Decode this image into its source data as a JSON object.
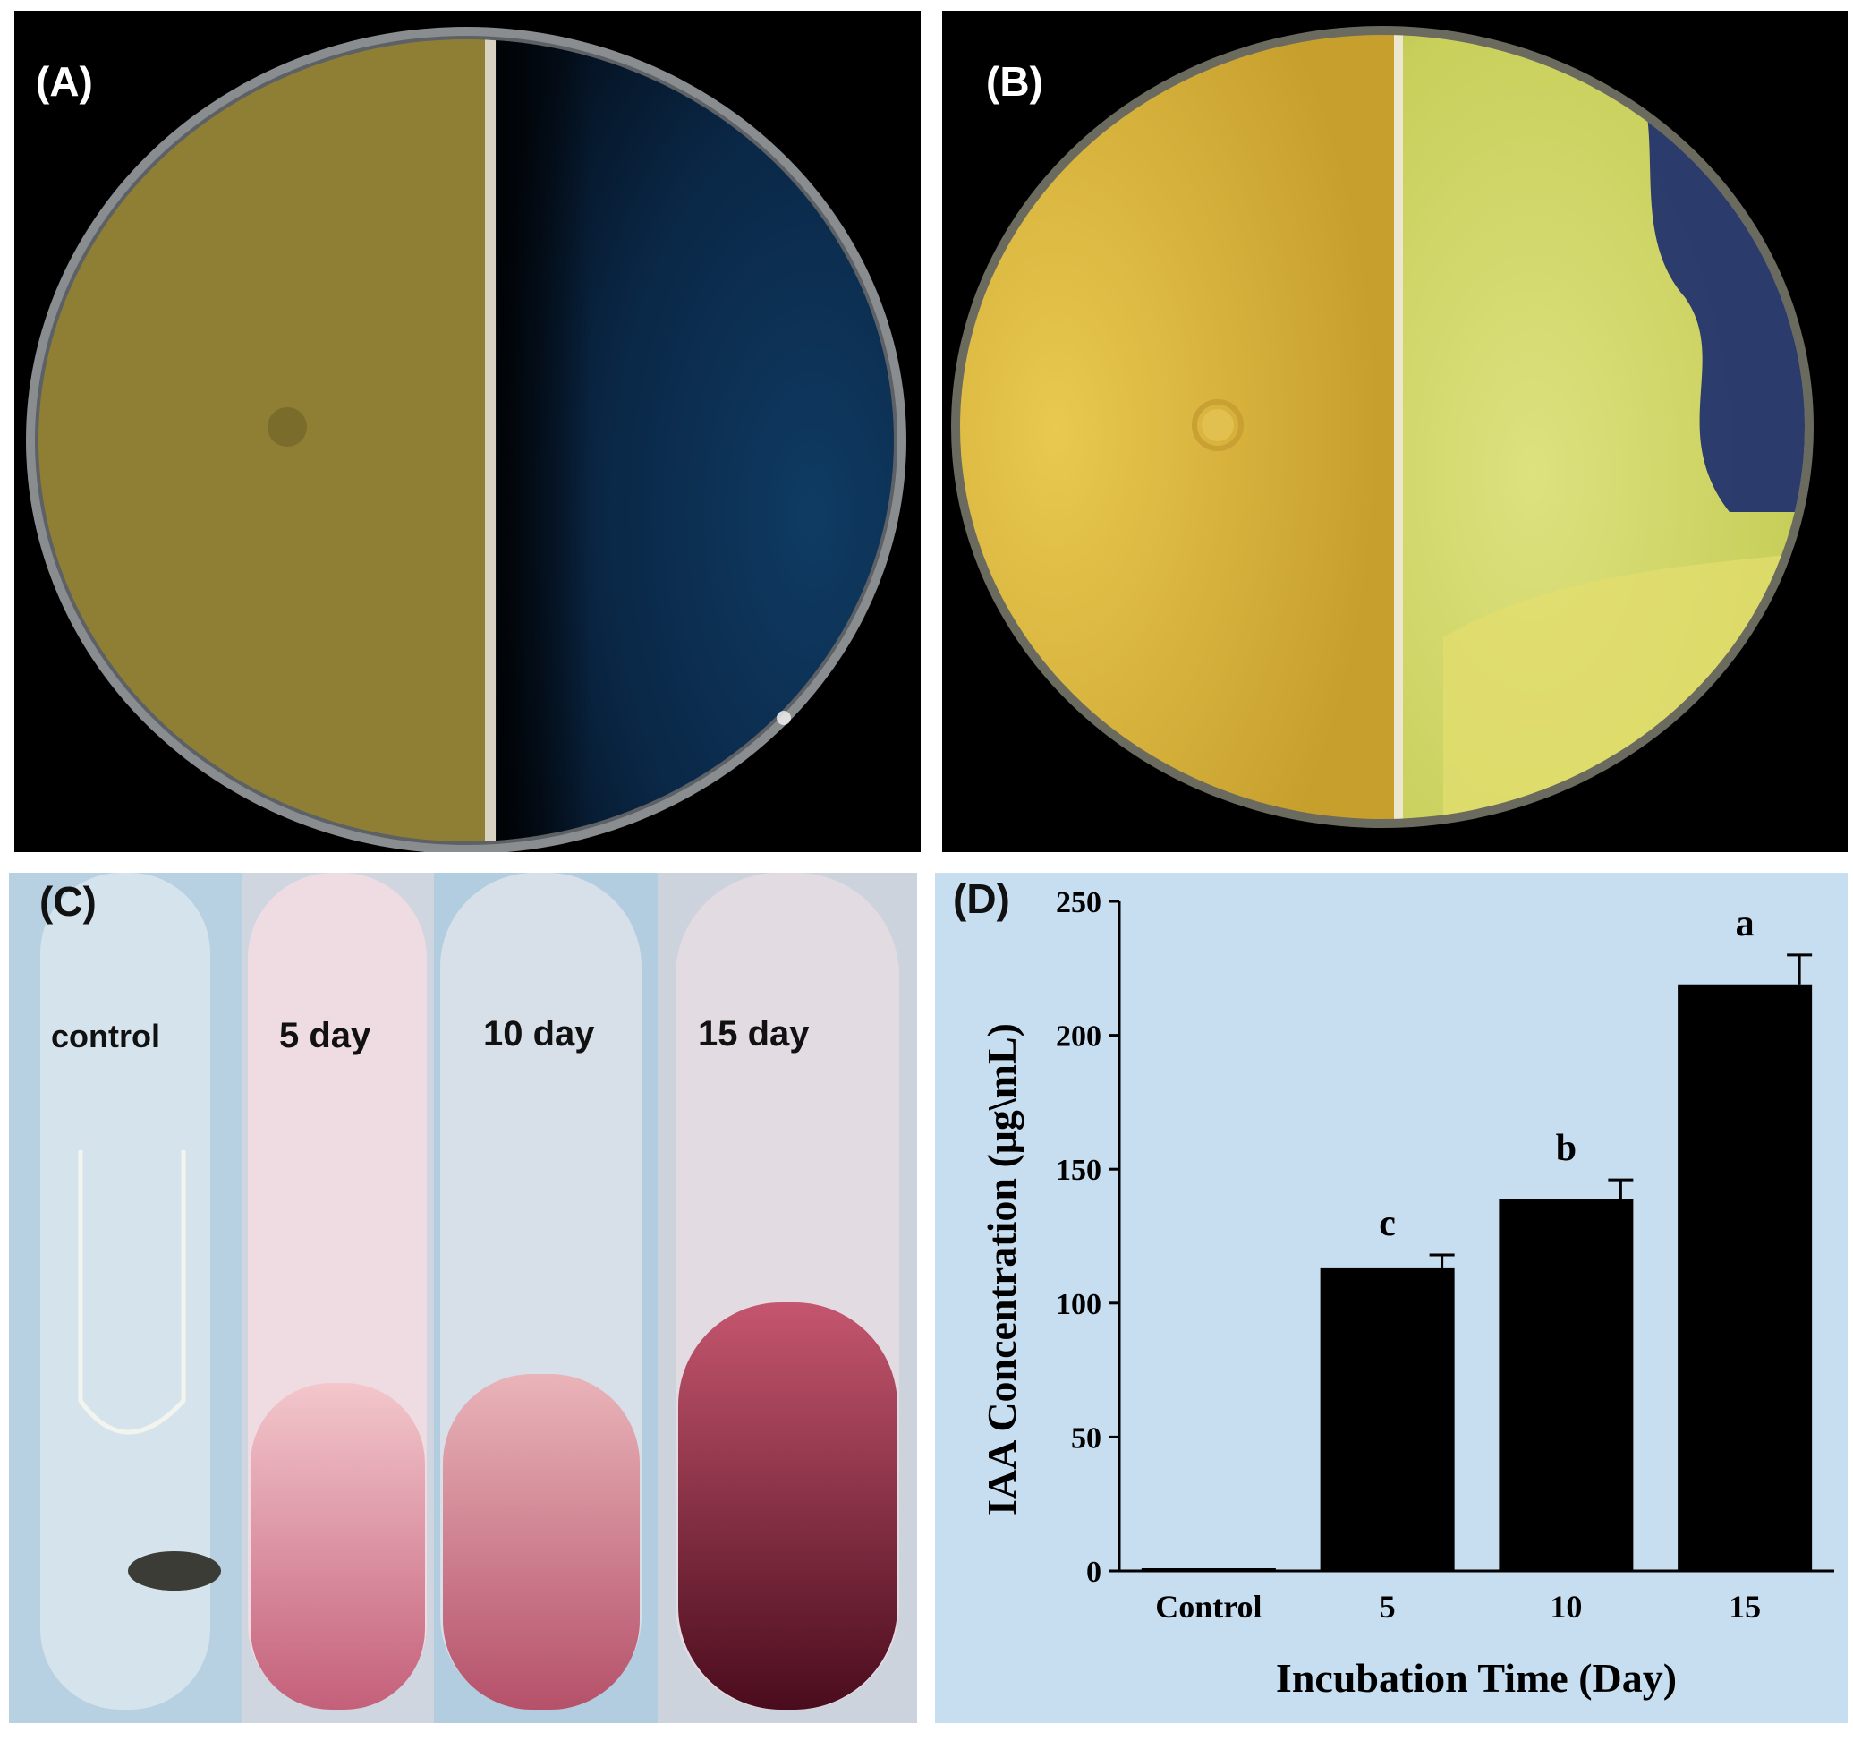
{
  "panels": {
    "a": {
      "label": "(A)"
    },
    "b": {
      "label": "(B)"
    },
    "c": {
      "label": "(C)",
      "tubes": [
        "control",
        "5 day",
        "10 day",
        "15 day"
      ]
    },
    "d": {
      "label": "(D)"
    }
  },
  "chart_data": {
    "type": "bar",
    "categories": [
      "Control",
      "5",
      "10",
      "15"
    ],
    "values": [
      1,
      113,
      139,
      219
    ],
    "error": [
      0.5,
      5,
      7,
      11
    ],
    "significance_letters": [
      "",
      "c",
      "b",
      "a"
    ],
    "ylim": [
      0,
      250
    ],
    "yticks": [
      0,
      50,
      100,
      150,
      200,
      250
    ],
    "xlabel": "Incubation Time (Day)",
    "ylabel": "IAA Concentration (μg\\mL)",
    "bar_color": "#000000",
    "background": "#c7ddf0"
  }
}
